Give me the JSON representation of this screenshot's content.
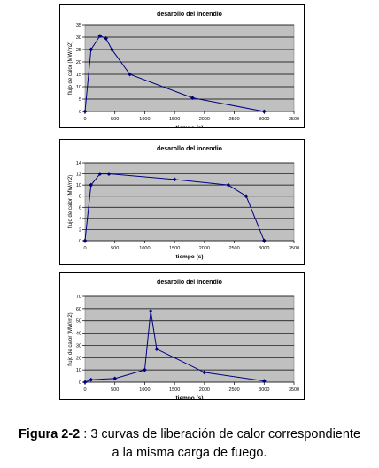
{
  "chart_data": [
    {
      "type": "line",
      "title": "desarollo del incendio",
      "xlabel": "tiempo (s)",
      "ylabel": "flujo de calor (MW/m2)",
      "xlim": [
        0,
        3500
      ],
      "ylim": [
        0,
        35
      ],
      "xticks": [
        0,
        500,
        1000,
        1500,
        2000,
        2500,
        3000,
        3500
      ],
      "yticks": [
        0,
        5,
        10,
        15,
        20,
        25,
        30,
        35
      ],
      "grid": true,
      "series": [
        {
          "points": [
            [
              0,
              0
            ],
            [
              100,
              25
            ],
            [
              250,
              30.5
            ],
            [
              350,
              29.5
            ],
            [
              450,
              25
            ],
            [
              750,
              15
            ],
            [
              1800,
              5.5
            ],
            [
              3000,
              0
            ]
          ]
        }
      ]
    },
    {
      "type": "line",
      "title": "desarollo del incendio",
      "xlabel": "tiempo (s)",
      "ylabel": "flujo de calor (MW/m2)",
      "xlim": [
        0,
        3500
      ],
      "ylim": [
        0,
        14
      ],
      "xticks": [
        0,
        500,
        1000,
        1500,
        2000,
        2500,
        3000,
        3500
      ],
      "yticks": [
        0,
        2,
        4,
        6,
        8,
        10,
        12,
        14
      ],
      "grid": true,
      "series": [
        {
          "points": [
            [
              0,
              0
            ],
            [
              100,
              10
            ],
            [
              250,
              12
            ],
            [
              400,
              12
            ],
            [
              1500,
              11
            ],
            [
              2400,
              10
            ],
            [
              2700,
              8
            ],
            [
              3000,
              0
            ]
          ]
        }
      ]
    },
    {
      "type": "line",
      "title": "desarollo del incendio",
      "xlabel": "tiempo (s)",
      "ylabel": "flujo de calor (MW/m2)",
      "xlim": [
        0,
        3500
      ],
      "ylim": [
        0,
        70
      ],
      "xticks": [
        0,
        500,
        1000,
        1500,
        2000,
        2500,
        3000,
        3500
      ],
      "yticks": [
        0,
        10,
        20,
        30,
        40,
        50,
        60,
        70
      ],
      "grid": true,
      "series": [
        {
          "points": [
            [
              0,
              0
            ],
            [
              100,
              2
            ],
            [
              500,
              3
            ],
            [
              1000,
              10
            ],
            [
              1100,
              58
            ],
            [
              1200,
              27
            ],
            [
              2000,
              8
            ],
            [
              3000,
              1
            ]
          ]
        }
      ]
    }
  ],
  "caption": {
    "label": "Figura 2-2",
    "separator": " : ",
    "text_line1": "3 curvas de liberación de calor correspondiente",
    "text_line2": "a la misma carga de fuego."
  },
  "colors": {
    "plot_area": "#c0c0c0",
    "series": "#000080",
    "grid": "#000000",
    "frame": "#000000"
  }
}
